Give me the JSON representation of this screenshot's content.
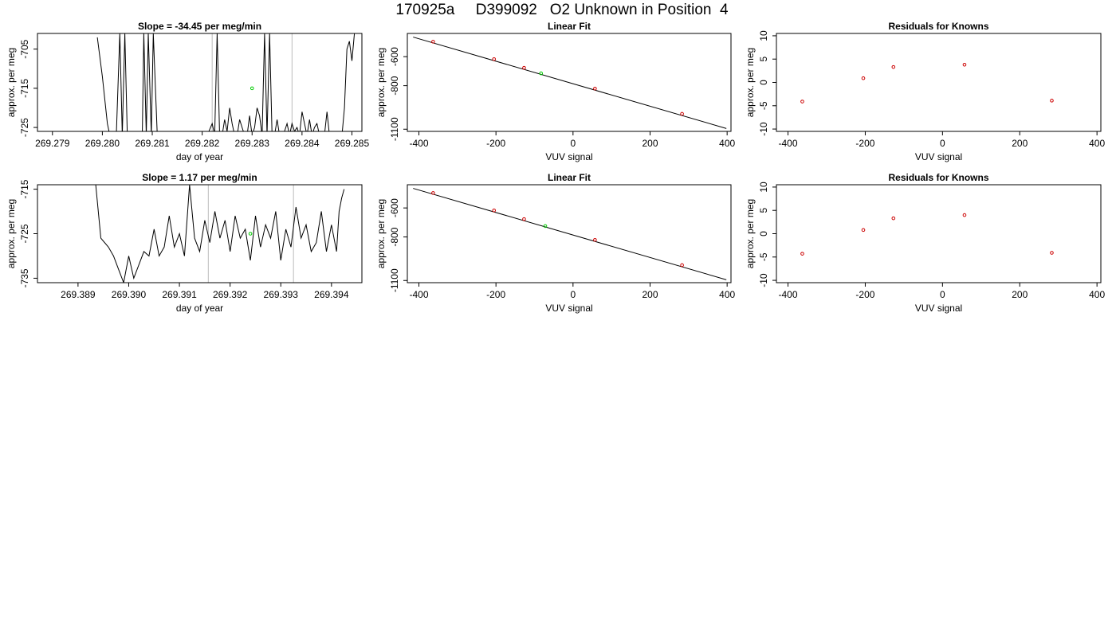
{
  "page_title": "170925a     D399092   O2 Unknown in Position  4",
  "colors": {
    "known_point": "#cc0000",
    "unknown_point": "#00cc00",
    "trace": "#000000",
    "marker_line": "#bbbbbb"
  },
  "chart_data": [
    {
      "type": "line",
      "title": "Slope =  -34.45  per meg/min",
      "xlabel": "day of year",
      "ylabel": "approx. per meg",
      "xlim": [
        269.2787,
        269.2852
      ],
      "ylim": [
        -726,
        -701
      ],
      "xticks": [
        269.279,
        269.28,
        269.281,
        269.282,
        269.283,
        269.284,
        269.285
      ],
      "xtick_labels": [
        "269.279",
        "269.280",
        "269.281",
        "269.282",
        "269.283",
        "269.284",
        "269.285"
      ],
      "yticks": [
        -705,
        -715,
        -725
      ],
      "ytick_labels": [
        "-705",
        "-715",
        "-725"
      ],
      "vlines": [
        269.2822,
        269.2838
      ],
      "unknown_point": {
        "x": 269.283,
        "y": -715
      },
      "series": [
        {
          "x": [
            269.2799,
            269.28,
            269.2801,
            269.28015,
            269.2802,
            269.28028,
            269.28035,
            269.2804,
            269.28045,
            269.2805,
            269.28055,
            269.2806,
            269.28065,
            269.2807,
            269.28075,
            269.2808,
            269.28083,
            269.28088,
            269.28092,
            269.28098,
            269.28102,
            269.2811,
            269.2812,
            269.28135,
            269.2815,
            269.2817,
            269.2819,
            269.2821,
            269.2822,
            269.28225,
            269.2823,
            269.28235,
            269.2824,
            269.28245,
            269.2825,
            269.28255,
            269.2826,
            269.28265,
            269.2827,
            269.28275,
            269.2828,
            269.28285,
            269.2829,
            269.28295,
            269.283,
            269.28305,
            269.2831,
            269.28315,
            269.2832,
            269.28325,
            269.2833,
            269.28335,
            269.2834,
            269.28345,
            269.2835,
            269.28355,
            269.2836,
            269.28365,
            269.2837,
            269.28375,
            269.2838,
            269.28385,
            269.2839,
            269.28395,
            269.284,
            269.28405,
            269.2841,
            269.28415,
            269.2842,
            269.28425,
            269.2843,
            269.28435,
            269.2844,
            269.28445,
            269.2845,
            269.28455,
            269.2846,
            269.28465,
            269.2847,
            269.28475,
            269.2848,
            269.28485,
            269.2849,
            269.28495,
            269.285,
            269.28505,
            269.2851
          ],
          "y": [
            -702,
            -712,
            -724,
            -727,
            -727,
            -727,
            -701,
            -727,
            -701,
            -727,
            -727,
            -727,
            -727,
            -727,
            -727,
            -727,
            -701,
            -727,
            -701,
            -727,
            -701,
            -727,
            -727,
            -727,
            -727,
            -727,
            -727,
            -727,
            -724,
            -727,
            -701,
            -727,
            -727,
            -723,
            -726,
            -720,
            -724,
            -727,
            -727,
            -723,
            -725,
            -727,
            -727,
            -722,
            -727,
            -725,
            -720,
            -722,
            -727,
            -701,
            -727,
            -701,
            -727,
            -727,
            -723,
            -727,
            -727,
            -726,
            -724,
            -727,
            -724,
            -726,
            -725,
            -727,
            -721,
            -724,
            -727,
            -723,
            -727,
            -725,
            -724,
            -727,
            -727,
            -727,
            -721,
            -727,
            -727,
            -727,
            -727,
            -727,
            -727,
            -720,
            -705,
            -703,
            -708,
            -701,
            -701
          ]
        }
      ]
    },
    {
      "type": "scatter",
      "title": "Linear Fit",
      "xlabel": "VUV signal",
      "ylabel": "approx. per meg",
      "xlim": [
        -430,
        410
      ],
      "ylim": [
        -1115,
        -440
      ],
      "xticks": [
        -400,
        -200,
        0,
        200,
        400
      ],
      "xtick_labels": [
        "-400",
        "-200",
        "0",
        "200",
        "400"
      ],
      "yticks": [
        -600,
        -800,
        -1100
      ],
      "ytick_labels": [
        "-600",
        "-800",
        "-1100"
      ],
      "fit_line": {
        "x": [
          -415,
          398
        ],
        "y": [
          -465,
          -1095
        ]
      },
      "known_points": {
        "x": [
          -363,
          -205,
          -127,
          57,
          283
        ],
        "y": [
          -497,
          -617,
          -677,
          -820,
          -994
        ]
      },
      "unknown_point": {
        "x": -83,
        "y": -715
      }
    },
    {
      "type": "scatter",
      "title": "Residuals for Knowns",
      "xlabel": "VUV signal",
      "ylabel": "approx. per meg",
      "xlim": [
        -430,
        410
      ],
      "ylim": [
        -10.5,
        10.5
      ],
      "xticks": [
        -400,
        -200,
        0,
        200,
        400
      ],
      "xtick_labels": [
        "-400",
        "-200",
        "0",
        "200",
        "400"
      ],
      "yticks": [
        10,
        5,
        0,
        -5,
        -10
      ],
      "ytick_labels": [
        "10",
        "5",
        "0",
        "-5",
        "-10"
      ],
      "known_points": {
        "x": [
          -363,
          -205,
          -127,
          57,
          283
        ],
        "y": [
          -4.1,
          0.9,
          3.3,
          3.8,
          -3.9
        ]
      }
    },
    {
      "type": "line",
      "title": "Slope =  1.17  per meg/min",
      "xlabel": "day of year",
      "ylabel": "approx. per meg",
      "xlim": [
        269.3882,
        269.3946
      ],
      "ylim": [
        -736,
        -714
      ],
      "xticks": [
        269.389,
        269.39,
        269.391,
        269.392,
        269.393,
        269.394
      ],
      "xtick_labels": [
        "269.389",
        "269.390",
        "269.391",
        "269.392",
        "269.393",
        "269.394"
      ],
      "yticks": [
        -715,
        -725,
        -735
      ],
      "ytick_labels": [
        "-715",
        "-725",
        "-735"
      ],
      "vlines": [
        269.39157,
        269.39325
      ],
      "unknown_point": {
        "x": 269.3924,
        "y": -725
      },
      "series": [
        {
          "x": [
            269.38935,
            269.38945,
            269.3896,
            269.3897,
            269.3898,
            269.3899,
            269.39,
            269.3901,
            269.3902,
            269.3903,
            269.3904,
            269.3905,
            269.3906,
            269.3907,
            269.3908,
            269.3909,
            269.391,
            269.3911,
            269.3912,
            269.3913,
            269.3914,
            269.3915,
            269.3916,
            269.3917,
            269.3918,
            269.3919,
            269.392,
            269.3921,
            269.3922,
            269.3923,
            269.3924,
            269.3925,
            269.3926,
            269.3927,
            269.3928,
            269.3929,
            269.393,
            269.3931,
            269.3932,
            269.3933,
            269.3934,
            269.3935,
            269.3936,
            269.3937,
            269.3938,
            269.3939,
            269.394,
            269.3941,
            269.39415,
            269.3942,
            269.39425
          ],
          "y": [
            -714,
            -726,
            -728,
            -730,
            -733,
            -736,
            -730,
            -735,
            -732,
            -729,
            -730,
            -724,
            -730,
            -728,
            -721,
            -728,
            -725,
            -730,
            -714,
            -726,
            -729,
            -722,
            -727,
            -720,
            -726,
            -722,
            -729,
            -721,
            -726,
            -724,
            -731,
            -721,
            -728,
            -723,
            -726,
            -720,
            -731,
            -724,
            -728,
            -719,
            -726,
            -723,
            -729,
            -727,
            -720,
            -729,
            -723,
            -729,
            -720,
            -717,
            -715
          ]
        }
      ]
    },
    {
      "type": "scatter",
      "title": "Linear Fit",
      "xlabel": "VUV signal",
      "ylabel": "approx. per meg",
      "xlim": [
        -430,
        410
      ],
      "ylim": [
        -1115,
        -440
      ],
      "xticks": [
        -400,
        -200,
        0,
        200,
        400
      ],
      "xtick_labels": [
        "-400",
        "-200",
        "0",
        "200",
        "400"
      ],
      "yticks": [
        -600,
        -800,
        -1100
      ],
      "ytick_labels": [
        "-600",
        "-800",
        "-1100"
      ],
      "fit_line": {
        "x": [
          -415,
          398
        ],
        "y": [
          -465,
          -1095
        ]
      },
      "known_points": {
        "x": [
          -363,
          -205,
          -127,
          57,
          283
        ],
        "y": [
          -497,
          -617,
          -677,
          -820,
          -994
        ]
      },
      "unknown_point": {
        "x": -72,
        "y": -725
      }
    },
    {
      "type": "scatter",
      "title": "Residuals for Knowns",
      "xlabel": "VUV signal",
      "ylabel": "approx. per meg",
      "xlim": [
        -430,
        410
      ],
      "ylim": [
        -10.5,
        10.5
      ],
      "xticks": [
        -400,
        -200,
        0,
        200,
        400
      ],
      "xtick_labels": [
        "-400",
        "-200",
        "0",
        "200",
        "400"
      ],
      "yticks": [
        10,
        5,
        0,
        -5,
        -10
      ],
      "ytick_labels": [
        "10",
        "5",
        "0",
        "-5",
        "-10"
      ],
      "known_points": {
        "x": [
          -363,
          -205,
          -127,
          57,
          283
        ],
        "y": [
          -4.3,
          0.8,
          3.3,
          4.0,
          -4.1
        ]
      }
    }
  ]
}
